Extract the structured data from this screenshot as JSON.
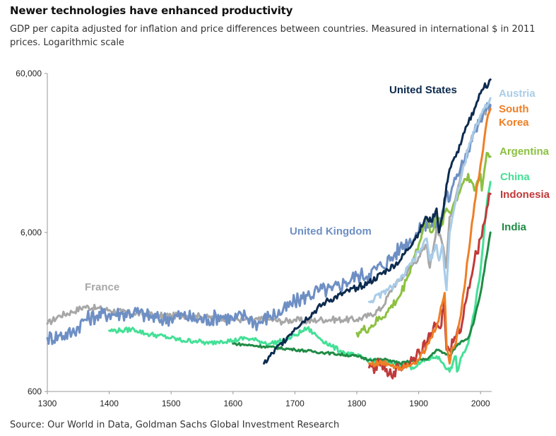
{
  "title": "Newer technologies have enhanced productivity",
  "subtitle": "GDP per capita adjusted for inflation and price differences between countries. Measured in international $ in 2011 prices. Logarithmic scale",
  "source": "Source: Our World in Data, Goldman Sachs Global Investment Research",
  "chart_data": {
    "type": "line",
    "y_scale": "log",
    "xlim": [
      1300,
      2018
    ],
    "ylim": [
      600,
      60000
    ],
    "x_ticks": [
      "1300",
      "1400",
      "1500",
      "1600",
      "1700",
      "1800",
      "1900",
      "2000"
    ],
    "x_tick_values": [
      1300,
      1400,
      1500,
      1600,
      1700,
      1800,
      1900,
      2000
    ],
    "y_ticks": [
      "600",
      "6,000",
      "60,000"
    ],
    "y_tick_values": [
      600,
      6000,
      60000
    ],
    "grid": false,
    "legend": "direct labels",
    "series": [
      {
        "name": "United States",
        "color": "#0d2b4e",
        "label_lines": [
          "United States"
        ],
        "x": [
          1650,
          1700,
          1750,
          1800,
          1820,
          1850,
          1870,
          1900,
          1913,
          1920,
          1929,
          1933,
          1940,
          1945,
          1950,
          1960,
          1970,
          1980,
          1990,
          2000,
          2007,
          2009,
          2016
        ],
        "y": [
          900,
          1500,
          2200,
          2700,
          2900,
          3500,
          4000,
          6000,
          7500,
          7000,
          8500,
          6000,
          8200,
          12000,
          15000,
          18000,
          23000,
          29000,
          36000,
          45000,
          52000,
          49000,
          55000
        ]
      },
      {
        "name": "United Kingdom",
        "color": "#6d8fc4",
        "label_lines": [
          "United Kingdom"
        ],
        "x": [
          1300,
          1320,
          1340,
          1360,
          1380,
          1400,
          1420,
          1440,
          1460,
          1480,
          1500,
          1520,
          1540,
          1560,
          1580,
          1600,
          1620,
          1640,
          1660,
          1680,
          1700,
          1720,
          1740,
          1760,
          1780,
          1800,
          1820,
          1840,
          1860,
          1870,
          1900,
          1913,
          1920,
          1929,
          1933,
          1940,
          1945,
          1950,
          1960,
          1970,
          1980,
          1990,
          2000,
          2007,
          2009,
          2016
        ],
        "y": [
          1300,
          1350,
          1400,
          1700,
          1800,
          1850,
          1850,
          1900,
          1800,
          1700,
          1750,
          1800,
          1700,
          1700,
          1800,
          1700,
          1800,
          1600,
          1800,
          1900,
          2200,
          2400,
          2600,
          2600,
          2900,
          3200,
          3300,
          3700,
          4300,
          4800,
          6000,
          7000,
          6500,
          7000,
          6500,
          8500,
          11000,
          9500,
          13000,
          17000,
          20000,
          26000,
          30000,
          36000,
          35000,
          38000
        ]
      },
      {
        "name": "France",
        "color": "#a7a7a7",
        "label_lines": [
          "France"
        ],
        "x": [
          1300,
          1320,
          1340,
          1360,
          1380,
          1400,
          1420,
          1440,
          1460,
          1480,
          1500,
          1520,
          1540,
          1560,
          1580,
          1600,
          1620,
          1640,
          1660,
          1680,
          1700,
          1720,
          1740,
          1760,
          1780,
          1800,
          1820,
          1840,
          1860,
          1870,
          1900,
          1913,
          1918,
          1929,
          1940,
          1944,
          1950,
          1960,
          1970,
          1980,
          1990,
          2000,
          2016
        ],
        "y": [
          1600,
          1800,
          1900,
          2050,
          2000,
          1950,
          1900,
          1850,
          1850,
          1800,
          1800,
          1800,
          1800,
          1750,
          1750,
          1700,
          1700,
          1700,
          1700,
          1650,
          1700,
          1650,
          1700,
          1700,
          1700,
          1700,
          1800,
          2000,
          2800,
          3000,
          4200,
          5000,
          3600,
          6500,
          4800,
          3600,
          7500,
          10000,
          15000,
          20000,
          26000,
          31000,
          38000
        ]
      },
      {
        "name": "Austria",
        "color": "#a9cde8",
        "label_lines": [
          "Austria"
        ],
        "x": [
          1820,
          1850,
          1870,
          1900,
          1913,
          1918,
          1929,
          1933,
          1938,
          1945,
          1950,
          1960,
          1970,
          1980,
          1990,
          2000,
          2016
        ],
        "y": [
          2200,
          2600,
          3000,
          4500,
          5500,
          4000,
          5000,
          4000,
          5000,
          2600,
          6000,
          9500,
          14000,
          20000,
          26000,
          33000,
          42000
        ]
      },
      {
        "name": "South Korea",
        "color": "#ef7f26",
        "label_lines": [
          "South",
          "Korea"
        ],
        "x": [
          1820,
          1850,
          1870,
          1900,
          1911,
          1920,
          1930,
          1940,
          1942,
          1945,
          1950,
          1953,
          1960,
          1970,
          1980,
          1990,
          2000,
          2010,
          2016
        ],
        "y": [
          900,
          900,
          850,
          950,
          1100,
          1300,
          1600,
          2300,
          2500,
          1200,
          900,
          1100,
          1200,
          2100,
          4300,
          9000,
          16000,
          30000,
          36000
        ]
      },
      {
        "name": "Argentina",
        "color": "#8cc040",
        "label_lines": [
          "Argentina"
        ],
        "x": [
          1800,
          1820,
          1850,
          1870,
          1880,
          1890,
          1900,
          1910,
          1913,
          1920,
          1930,
          1935,
          1945,
          1950,
          1960,
          1970,
          1980,
          1990,
          2000,
          2002,
          2010,
          2016
        ],
        "y": [
          1400,
          1500,
          1900,
          2400,
          3000,
          4000,
          5000,
          7000,
          7500,
          6000,
          7500,
          6500,
          8500,
          8000,
          9500,
          12000,
          14000,
          11000,
          14000,
          11000,
          19000,
          18000
        ]
      },
      {
        "name": "China",
        "color": "#43e096",
        "label_lines": [
          "China"
        ],
        "x": [
          1400,
          1420,
          1440,
          1460,
          1480,
          1500,
          1520,
          1540,
          1560,
          1580,
          1600,
          1620,
          1640,
          1660,
          1680,
          1700,
          1720,
          1740,
          1760,
          1780,
          1800,
          1820,
          1850,
          1870,
          1890,
          1913,
          1929,
          1940,
          1950,
          1955,
          1960,
          1962,
          1970,
          1980,
          1990,
          2000,
          2010,
          2016
        ],
        "y": [
          1450,
          1450,
          1480,
          1380,
          1350,
          1300,
          1250,
          1250,
          1200,
          1250,
          1250,
          1300,
          1250,
          1200,
          1250,
          1350,
          1500,
          1300,
          1150,
          1050,
          1000,
          950,
          900,
          900,
          850,
          950,
          1000,
          900,
          800,
          900,
          1000,
          800,
          1000,
          1200,
          1900,
          3500,
          9000,
          12500
        ]
      },
      {
        "name": "Indonesia",
        "color": "#c03a3a",
        "label_lines": [
          "Indonesia"
        ],
        "x": [
          1820,
          1830,
          1840,
          1850,
          1860,
          1870,
          1880,
          1890,
          1900,
          1913,
          1920,
          1929,
          1935,
          1940,
          1941,
          1945,
          1949,
          1950,
          1960,
          1970,
          1980,
          1990,
          2000,
          2010,
          2016
        ],
        "y": [
          850,
          850,
          900,
          750,
          800,
          850,
          900,
          950,
          1100,
          1200,
          1400,
          1600,
          1500,
          2000,
          2200,
          1100,
          1100,
          1100,
          1300,
          1600,
          2700,
          4000,
          5500,
          8500,
          10500
        ]
      },
      {
        "name": "India",
        "color": "#1f8b44",
        "label_lines": [
          "India"
        ],
        "x": [
          1600,
          1650,
          1700,
          1750,
          1800,
          1820,
          1850,
          1870,
          1900,
          1913,
          1929,
          1940,
          1950,
          1960,
          1970,
          1980,
          1990,
          2000,
          2010,
          2016
        ],
        "y": [
          1200,
          1150,
          1100,
          1050,
          1000,
          950,
          950,
          900,
          950,
          950,
          1100,
          1050,
          1000,
          1150,
          1250,
          1300,
          1700,
          2500,
          4300,
          6000
        ]
      }
    ]
  }
}
